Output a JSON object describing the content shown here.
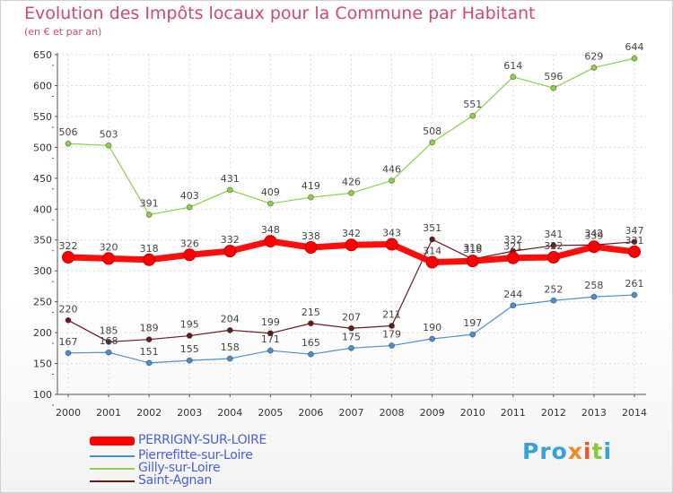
{
  "header": {
    "title": "Evolution des Impôts locaux pour la Commune par Habitant",
    "subtitle": "(en € et par an)"
  },
  "logo": {
    "text": "Proxiti",
    "parts": [
      "Pro",
      "x",
      "i",
      "t",
      "i"
    ]
  },
  "chart_data": {
    "type": "line",
    "x": [
      "2000",
      "2001",
      "2002",
      "2003",
      "2004",
      "2005",
      "2006",
      "2007",
      "2008",
      "2009",
      "2010",
      "2011",
      "2012",
      "2013",
      "2014"
    ],
    "ylim": [
      100,
      650
    ],
    "yticks": [
      100,
      150,
      200,
      250,
      300,
      350,
      400,
      450,
      500,
      550,
      600,
      650
    ],
    "grid": true,
    "legend_position": "bottom-left",
    "series": [
      {
        "name": "PERRIGNY-SUR-LOIRE",
        "color": "#ff0000",
        "emphasis": true,
        "values": [
          322,
          320,
          318,
          326,
          332,
          348,
          338,
          342,
          343,
          314,
          316,
          321,
          322,
          339,
          331
        ],
        "labels": [
          "322",
          "320",
          "318",
          "326",
          "332",
          "348",
          "338",
          "342",
          "343",
          "314",
          "316",
          "321",
          "322",
          "339",
          "331"
        ]
      },
      {
        "name": "Pierrefitte-sur-Loire",
        "color": "#4a90d0",
        "values": [
          167,
          168,
          151,
          155,
          158,
          171,
          165,
          175,
          179,
          190,
          197,
          244,
          252,
          258,
          261
        ],
        "labels": [
          "167",
          "168",
          "151",
          "155",
          "158",
          "171",
          "165",
          "175",
          "179",
          "190",
          "197",
          "244",
          "252",
          "258",
          "261"
        ]
      },
      {
        "name": "Gilly-sur-Loire",
        "color": "#8dd04a",
        "values": [
          506,
          503,
          391,
          403,
          431,
          409,
          419,
          426,
          446,
          508,
          551,
          614,
          596,
          629,
          644
        ],
        "labels": [
          "506",
          "503",
          "391",
          "403",
          "431",
          "409",
          "419",
          "426",
          "446",
          "508",
          "551",
          "614",
          "596",
          "629",
          "644"
        ]
      },
      {
        "name": "Saint-Agnan",
        "color": "#6a1a1e",
        "values": [
          220,
          185,
          189,
          195,
          204,
          199,
          215,
          207,
          211,
          351,
          319,
          332,
          341,
          342,
          347
        ],
        "labels": [
          "220",
          "185",
          "189",
          "195",
          "204",
          "199",
          "215",
          "207",
          "211",
          "351",
          "319",
          "332",
          "341",
          "342",
          "347"
        ]
      }
    ]
  }
}
